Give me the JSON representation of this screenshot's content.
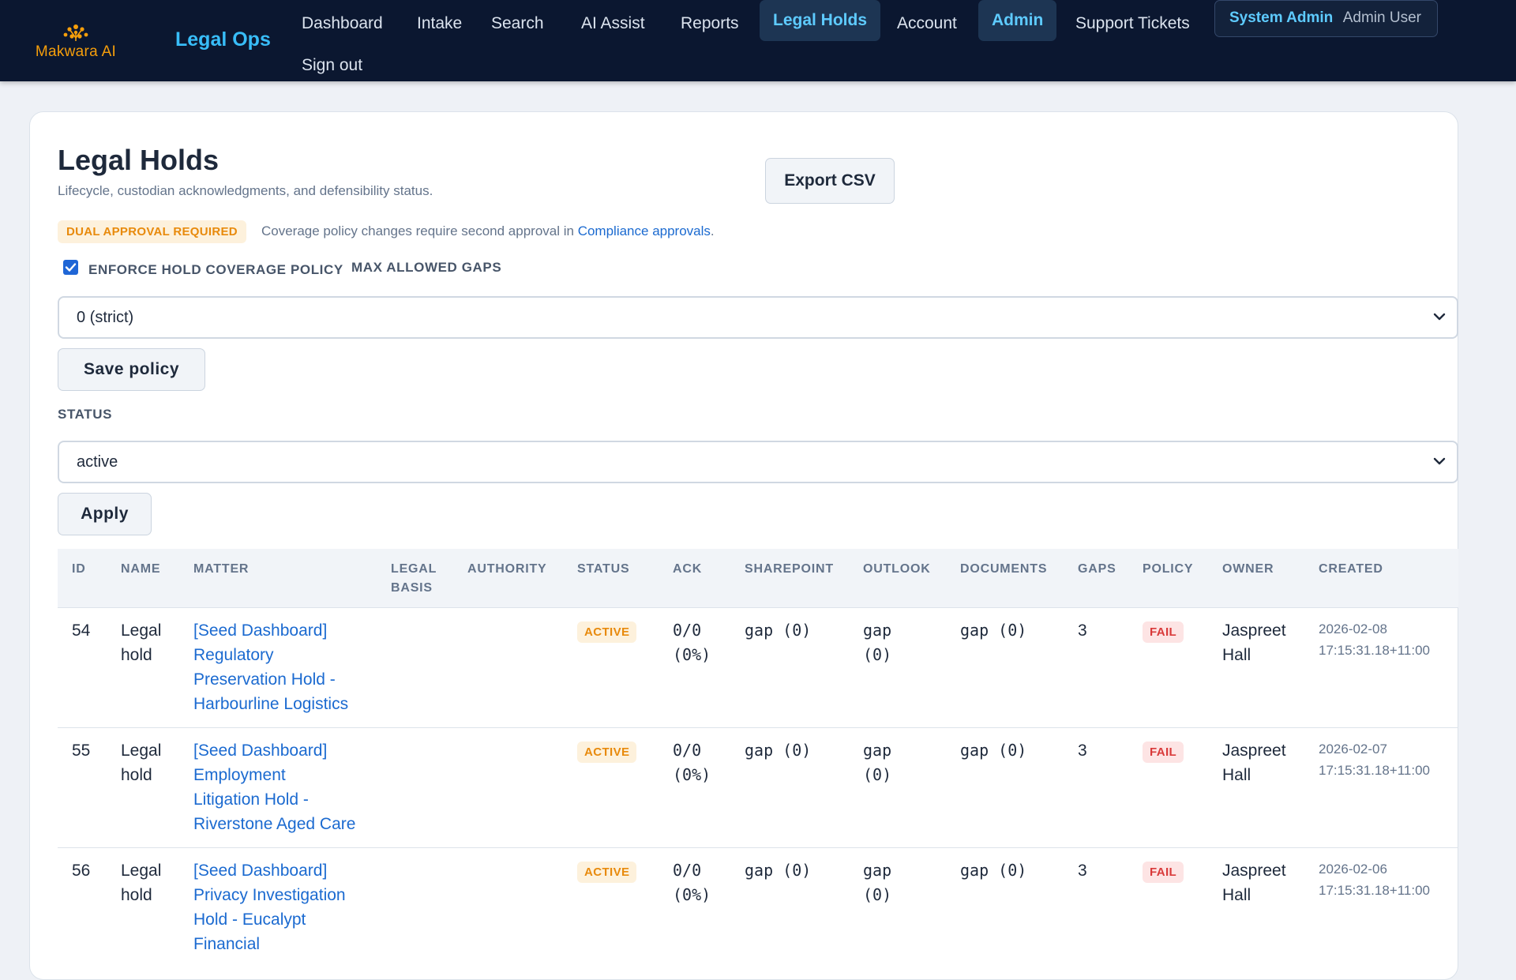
{
  "brand": {
    "name": "Makwara AI",
    "app_title": "Legal Ops",
    "logo_icon": "flower-icon",
    "accent": "#f59e0b"
  },
  "nav": {
    "items": [
      {
        "label": "Dashboard"
      },
      {
        "label": "Intake"
      },
      {
        "label": "Search"
      },
      {
        "label": "AI Assist"
      },
      {
        "label": "Reports"
      },
      {
        "label": "Legal Holds",
        "active": true
      },
      {
        "label": "Account"
      },
      {
        "label": "Admin",
        "active": true
      },
      {
        "label": "Support Tickets"
      },
      {
        "label": "Sign out"
      }
    ],
    "user": {
      "role": "System Admin",
      "name": "Admin User"
    }
  },
  "page": {
    "title": "Legal Holds",
    "subtitle": "Lifecycle, custodian acknowledgments, and defensibility status.",
    "export_label": "Export CSV",
    "approval": {
      "badge": "DUAL APPROVAL REQUIRED",
      "text": "Coverage policy changes require second approval in",
      "link": "Compliance approvals",
      "suffix": "."
    },
    "policy": {
      "checkbox_checked": true,
      "checkbox_label": "ENFORCE HOLD COVERAGE POLICY",
      "gaps_label": "MAX ALLOWED GAPS",
      "gaps_value": "0 (strict)",
      "save_label": "Save policy"
    },
    "filter": {
      "status_label": "STATUS",
      "status_value": "active",
      "apply_label": "Apply"
    }
  },
  "table": {
    "headers": {
      "id": "ID",
      "name": "NAME",
      "matter": "MATTER",
      "legal_basis_1": "LEGAL",
      "legal_basis_2": "BASIS",
      "authority": "AUTHORITY",
      "status": "STATUS",
      "ack": "ACK",
      "sharepoint": "SHAREPOINT",
      "outlook": "OUTLOOK",
      "documents": "DOCUMENTS",
      "gaps": "GAPS",
      "policy": "POLICY",
      "owner": "OWNER",
      "created": "CREATED"
    },
    "rows": [
      {
        "id": "54",
        "name_1": "Legal",
        "name_2": "hold",
        "matter_1": "[Seed Dashboard]",
        "matter_2": "Regulatory",
        "matter_3": "Preservation Hold -",
        "matter_4": "Harbourline Logistics",
        "status": "ACTIVE",
        "ack_1": "0/0",
        "ack_2": "(0%)",
        "sharepoint": "gap (0)",
        "outlook_1": "gap",
        "outlook_2": "(0)",
        "documents": "gap (0)",
        "gaps": "3",
        "policy": "FAIL",
        "owner_1": "Jaspreet",
        "owner_2": "Hall",
        "created_1": "2026-02-08",
        "created_2": "17:15:31.18+11:00"
      },
      {
        "id": "55",
        "name_1": "Legal",
        "name_2": "hold",
        "matter_1": "[Seed Dashboard]",
        "matter_2": "Employment",
        "matter_3": "Litigation Hold -",
        "matter_4": "Riverstone Aged Care",
        "status": "ACTIVE",
        "ack_1": "0/0",
        "ack_2": "(0%)",
        "sharepoint": "gap (0)",
        "outlook_1": "gap",
        "outlook_2": "(0)",
        "documents": "gap (0)",
        "gaps": "3",
        "policy": "FAIL",
        "owner_1": "Jaspreet",
        "owner_2": "Hall",
        "created_1": "2026-02-07",
        "created_2": "17:15:31.18+11:00"
      },
      {
        "id": "56",
        "name_1": "Legal",
        "name_2": "hold",
        "matter_1": "[Seed Dashboard]",
        "matter_2": "Privacy Investigation",
        "matter_3": "Hold - Eucalypt",
        "matter_4": "Financial",
        "status": "ACTIVE",
        "ack_1": "0/0",
        "ack_2": "(0%)",
        "sharepoint": "gap (0)",
        "outlook_1": "gap",
        "outlook_2": "(0)",
        "documents": "gap (0)",
        "gaps": "3",
        "policy": "FAIL",
        "owner_1": "Jaspreet",
        "owner_2": "Hall",
        "created_1": "2026-02-06",
        "created_2": "17:15:31.18+11:00"
      }
    ]
  }
}
